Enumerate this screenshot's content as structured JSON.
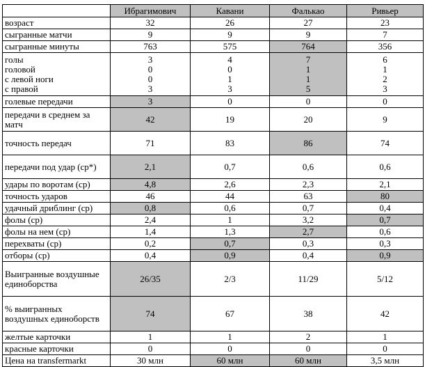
{
  "header": {
    "blank": "",
    "players": [
      "Ибрагимович",
      "Кавани",
      "Фалькао",
      "Ривьер"
    ]
  },
  "rows": [
    {
      "label": [
        "возраст"
      ],
      "values": [
        [
          "32"
        ],
        [
          "26"
        ],
        [
          "27"
        ],
        [
          "23"
        ]
      ],
      "hl": [
        0,
        0,
        0,
        0
      ],
      "h": 15
    },
    {
      "label": [
        "сыгранные матчи"
      ],
      "values": [
        [
          "9"
        ],
        [
          "9"
        ],
        [
          "9"
        ],
        [
          "7"
        ]
      ],
      "hl": [
        0,
        0,
        0,
        0
      ],
      "h": 15
    },
    {
      "label": [
        "сыгранные минуты"
      ],
      "values": [
        [
          "763"
        ],
        [
          "575"
        ],
        [
          "764"
        ],
        [
          "356"
        ]
      ],
      "hl": [
        0,
        0,
        1,
        0
      ],
      "h": 15
    },
    {
      "label": [
        "голы",
        "головой",
        "с левой ноги",
        "с правой"
      ],
      "values": [
        [
          "3",
          "0",
          "0",
          "3"
        ],
        [
          "4",
          "0",
          "1",
          "3"
        ],
        [
          "7",
          "1",
          "1",
          "5"
        ],
        [
          "6",
          "1",
          "2",
          "3"
        ]
      ],
      "hl": [
        0,
        0,
        1,
        0
      ],
      "h": 60
    },
    {
      "label": [
        "голевые передачи"
      ],
      "values": [
        [
          "3"
        ],
        [
          "0"
        ],
        [
          "0"
        ],
        [
          "0"
        ]
      ],
      "hl": [
        1,
        0,
        0,
        0
      ],
      "h": 15
    },
    {
      "label": [
        "передачи в среднем за матч"
      ],
      "values": [
        [
          "42"
        ],
        [
          "19"
        ],
        [
          "20"
        ],
        [
          "9"
        ]
      ],
      "hl": [
        1,
        0,
        0,
        0
      ],
      "h": 32
    },
    {
      "label": [
        "точность передач"
      ],
      "values": [
        [
          "71"
        ],
        [
          "83"
        ],
        [
          "86"
        ],
        [
          "74"
        ]
      ],
      "hl": [
        0,
        0,
        1,
        0
      ],
      "h": 32
    },
    {
      "label": [
        "передачи под удар (ср*)"
      ],
      "values": [
        [
          "2,1"
        ],
        [
          "0,7"
        ],
        [
          "0,6"
        ],
        [
          "0,6"
        ]
      ],
      "hl": [
        1,
        0,
        0,
        0
      ],
      "h": 32
    },
    {
      "label": [
        "удары по воротам (ср)"
      ],
      "values": [
        [
          "4,8"
        ],
        [
          "2,6"
        ],
        [
          "2,3"
        ],
        [
          "2,1"
        ]
      ],
      "hl": [
        1,
        0,
        0,
        0
      ],
      "h": 15
    },
    {
      "label": [
        "точность ударов"
      ],
      "values": [
        [
          "46"
        ],
        [
          "44"
        ],
        [
          "63"
        ],
        [
          "80"
        ]
      ],
      "hl": [
        0,
        0,
        0,
        1
      ],
      "h": 15
    },
    {
      "label": [
        "удачный дриблинг (ср)"
      ],
      "values": [
        [
          "0,8"
        ],
        [
          "0,6"
        ],
        [
          "0,7"
        ],
        [
          "0,4"
        ]
      ],
      "hl": [
        1,
        0,
        0,
        0
      ],
      "h": 15
    },
    {
      "label": [
        "фолы (ср)"
      ],
      "values": [
        [
          "2,4"
        ],
        [
          "1"
        ],
        [
          "3,2"
        ],
        [
          "0,7"
        ]
      ],
      "hl": [
        0,
        0,
        0,
        1
      ],
      "h": 15
    },
    {
      "label": [
        "фолы на нем (ср)"
      ],
      "values": [
        [
          "1,4"
        ],
        [
          "1,3"
        ],
        [
          "2,7"
        ],
        [
          "0,6"
        ]
      ],
      "hl": [
        0,
        0,
        1,
        0
      ],
      "h": 15
    },
    {
      "label": [
        "перехваты (ср)"
      ],
      "values": [
        [
          "0,2"
        ],
        [
          "0,7"
        ],
        [
          "0,3"
        ],
        [
          "0,3"
        ]
      ],
      "hl": [
        0,
        1,
        0,
        0
      ],
      "h": 15
    },
    {
      "label": [
        "отборы (ср)"
      ],
      "values": [
        [
          "0,4"
        ],
        [
          "0,9"
        ],
        [
          "0,4"
        ],
        [
          "0,9"
        ]
      ],
      "hl": [
        0,
        1,
        0,
        1
      ],
      "h": 15
    },
    {
      "label": [
        "Выигранные воздушные единоборства"
      ],
      "values": [
        [
          "26/35"
        ],
        [
          "2/3"
        ],
        [
          "11/29"
        ],
        [
          "5/12"
        ]
      ],
      "hl": [
        1,
        0,
        0,
        0
      ],
      "h": 48
    },
    {
      "label": [
        "% выигранных воздушных единоборств"
      ],
      "values": [
        [
          "74"
        ],
        [
          "67"
        ],
        [
          "38"
        ],
        [
          "42"
        ]
      ],
      "hl": [
        1,
        0,
        0,
        0
      ],
      "h": 48
    },
    {
      "label": [
        "желтые карточки"
      ],
      "values": [
        [
          "1"
        ],
        [
          "1"
        ],
        [
          "2"
        ],
        [
          "1"
        ]
      ],
      "hl": [
        0,
        0,
        0,
        0
      ],
      "h": 15
    },
    {
      "label": [
        "красные карточки"
      ],
      "values": [
        [
          "0"
        ],
        [
          "0"
        ],
        [
          "0"
        ],
        [
          "0"
        ]
      ],
      "hl": [
        0,
        0,
        0,
        0
      ],
      "h": 15
    },
    {
      "label": [
        "Цена на transfermarkt"
      ],
      "values": [
        [
          "30 млн"
        ],
        [
          "60 млн"
        ],
        [
          "60 млн"
        ],
        [
          "3,5 млн"
        ]
      ],
      "hl": [
        0,
        1,
        1,
        0
      ],
      "h": 15
    }
  ],
  "colors": {
    "highlight": "#c0c0c0",
    "border": "#000000",
    "background": "#ffffff"
  }
}
